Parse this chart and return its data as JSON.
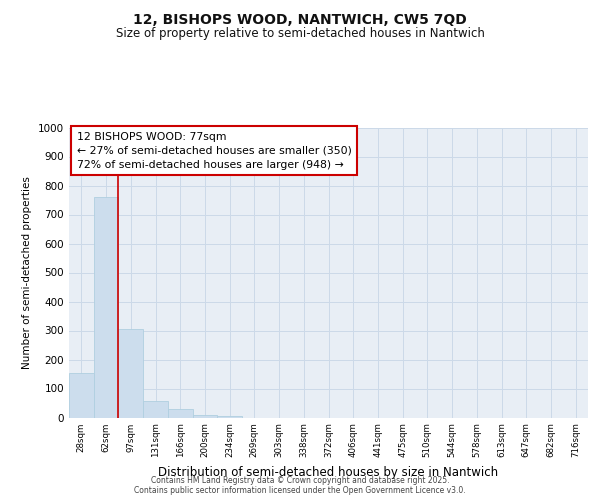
{
  "title_line1": "12, BISHOPS WOOD, NANTWICH, CW5 7QD",
  "title_line2": "Size of property relative to semi-detached houses in Nantwich",
  "xlabel": "Distribution of semi-detached houses by size in Nantwich",
  "ylabel": "Number of semi-detached properties",
  "bin_labels": [
    "28sqm",
    "62sqm",
    "97sqm",
    "131sqm",
    "166sqm",
    "200sqm",
    "234sqm",
    "269sqm",
    "303sqm",
    "338sqm",
    "372sqm",
    "406sqm",
    "441sqm",
    "475sqm",
    "510sqm",
    "544sqm",
    "578sqm",
    "613sqm",
    "647sqm",
    "682sqm",
    "716sqm"
  ],
  "bar_values": [
    155,
    760,
    305,
    57,
    30,
    10,
    5,
    0,
    0,
    0,
    0,
    0,
    0,
    0,
    0,
    0,
    0,
    0,
    0,
    0,
    0
  ],
  "bar_color": "#ccdded",
  "bar_edge_color": "#b0cfe0",
  "ylim": [
    0,
    1000
  ],
  "yticks": [
    0,
    100,
    200,
    300,
    400,
    500,
    600,
    700,
    800,
    900,
    1000
  ],
  "red_line_color": "#cc0000",
  "annotation_title": "12 BISHOPS WOOD: 77sqm",
  "annotation_line1": "← 27% of semi-detached houses are smaller (350)",
  "annotation_line2": "72% of semi-detached houses are larger (948) →",
  "annotation_box_color": "#ffffff",
  "annotation_border_color": "#cc0000",
  "grid_color": "#ccd9e8",
  "background_color": "#e8eef5",
  "footer_line1": "Contains HM Land Registry data © Crown copyright and database right 2025.",
  "footer_line2": "Contains public sector information licensed under the Open Government Licence v3.0."
}
